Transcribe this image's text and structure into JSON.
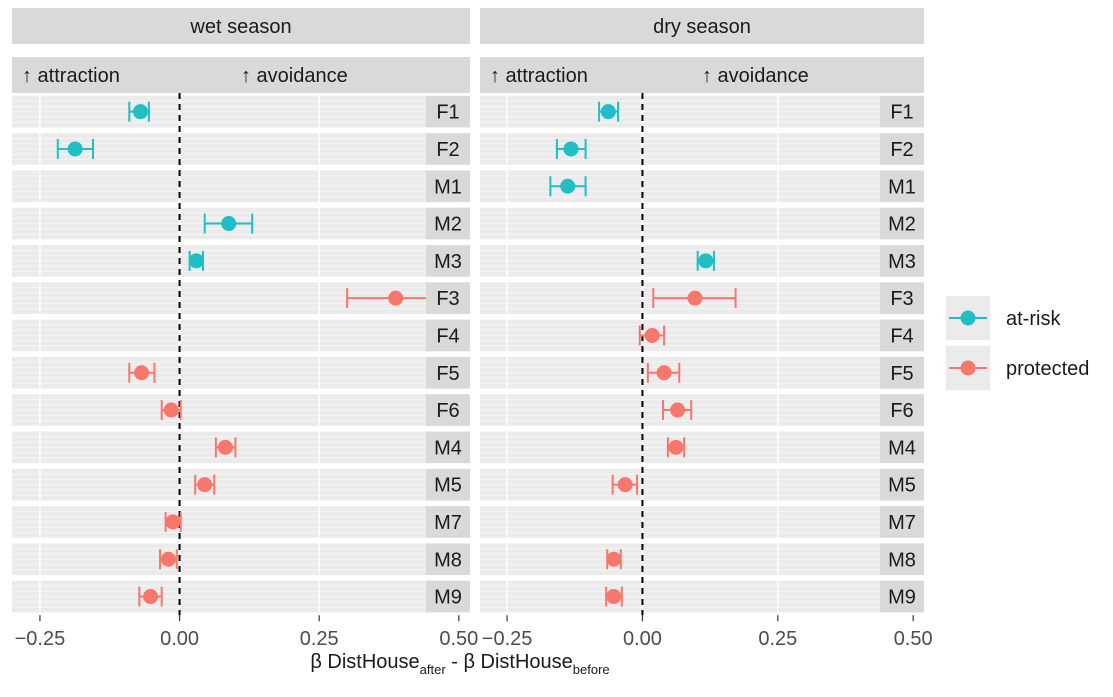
{
  "chart_data": {
    "type": "scatter",
    "subtype": "faceted dot-and-whisker plot (point estimate with 95% interval)",
    "facets": [
      "wet season",
      "dry season"
    ],
    "subheader": {
      "left": "attraction",
      "right": "avoidance",
      "arrow": "↑"
    },
    "rows": [
      "F1",
      "F2",
      "M1",
      "M2",
      "M3",
      "F3",
      "F4",
      "F5",
      "F6",
      "M4",
      "M5",
      "M7",
      "M8",
      "M9"
    ],
    "xlim": [
      -0.3,
      0.52
    ],
    "xticks": [
      -0.25,
      0.0,
      0.25,
      0.5
    ],
    "xtick_labels": [
      "−0.25",
      "0.00",
      "0.25",
      "0.50"
    ],
    "reference_line": 0,
    "xlabel_parts": [
      "β DistHouse",
      "after",
      " - β DistHouse",
      "before"
    ],
    "legend": [
      {
        "key": "at-risk",
        "label": "at-risk",
        "color": "#1fbfc4"
      },
      {
        "key": "protected",
        "label": "protected",
        "color": "#f7776d"
      }
    ],
    "series": [
      {
        "name": "at-risk",
        "color": "#1fbfc4",
        "points": [
          {
            "facet": "wet season",
            "row": "F1",
            "x": -0.07,
            "low": -0.09,
            "high": -0.055
          },
          {
            "facet": "wet season",
            "row": "F2",
            "x": -0.187,
            "low": -0.218,
            "high": -0.155
          },
          {
            "facet": "wet season",
            "row": "M2",
            "x": 0.088,
            "low": 0.045,
            "high": 0.13
          },
          {
            "facet": "wet season",
            "row": "M3",
            "x": 0.03,
            "low": 0.018,
            "high": 0.042
          },
          {
            "facet": "dry season",
            "row": "F1",
            "x": -0.063,
            "low": -0.08,
            "high": -0.045
          },
          {
            "facet": "dry season",
            "row": "F2",
            "x": -0.132,
            "low": -0.158,
            "high": -0.105
          },
          {
            "facet": "dry season",
            "row": "M1",
            "x": -0.138,
            "low": -0.17,
            "high": -0.105
          },
          {
            "facet": "dry season",
            "row": "M3",
            "x": 0.117,
            "low": 0.102,
            "high": 0.132
          }
        ]
      },
      {
        "name": "protected",
        "color": "#f7776d",
        "points": [
          {
            "facet": "wet season",
            "row": "F3",
            "x": 0.387,
            "low": 0.3,
            "high": 0.475
          },
          {
            "facet": "wet season",
            "row": "F5",
            "x": -0.068,
            "low": -0.09,
            "high": -0.045
          },
          {
            "facet": "wet season",
            "row": "F6",
            "x": -0.015,
            "low": -0.032,
            "high": 0.002
          },
          {
            "facet": "wet season",
            "row": "M4",
            "x": 0.082,
            "low": 0.065,
            "high": 0.1
          },
          {
            "facet": "wet season",
            "row": "M5",
            "x": 0.045,
            "low": 0.028,
            "high": 0.062
          },
          {
            "facet": "wet season",
            "row": "M7",
            "x": -0.012,
            "low": -0.025,
            "high": 0.002
          },
          {
            "facet": "wet season",
            "row": "M8",
            "x": -0.02,
            "low": -0.035,
            "high": -0.005
          },
          {
            "facet": "wet season",
            "row": "M9",
            "x": -0.052,
            "low": -0.072,
            "high": -0.032
          },
          {
            "facet": "dry season",
            "row": "F3",
            "x": 0.097,
            "low": 0.02,
            "high": 0.172
          },
          {
            "facet": "dry season",
            "row": "F4",
            "x": 0.018,
            "low": -0.005,
            "high": 0.04
          },
          {
            "facet": "dry season",
            "row": "F5",
            "x": 0.04,
            "low": 0.01,
            "high": 0.068
          },
          {
            "facet": "dry season",
            "row": "F6",
            "x": 0.065,
            "low": 0.038,
            "high": 0.09
          },
          {
            "facet": "dry season",
            "row": "M4",
            "x": 0.062,
            "low": 0.047,
            "high": 0.077
          },
          {
            "facet": "dry season",
            "row": "M5",
            "x": -0.032,
            "low": -0.055,
            "high": -0.01
          },
          {
            "facet": "dry season",
            "row": "M8",
            "x": -0.053,
            "low": -0.065,
            "high": -0.04
          },
          {
            "facet": "dry season",
            "row": "M9",
            "x": -0.053,
            "low": -0.067,
            "high": -0.038
          }
        ]
      }
    ],
    "colors": {
      "strip": "#d9d9d9",
      "row_band": "#ebebeb",
      "grid_minor": "#f5f5f5",
      "grid_major": "#ffffff",
      "reference_line": "#000000"
    }
  }
}
